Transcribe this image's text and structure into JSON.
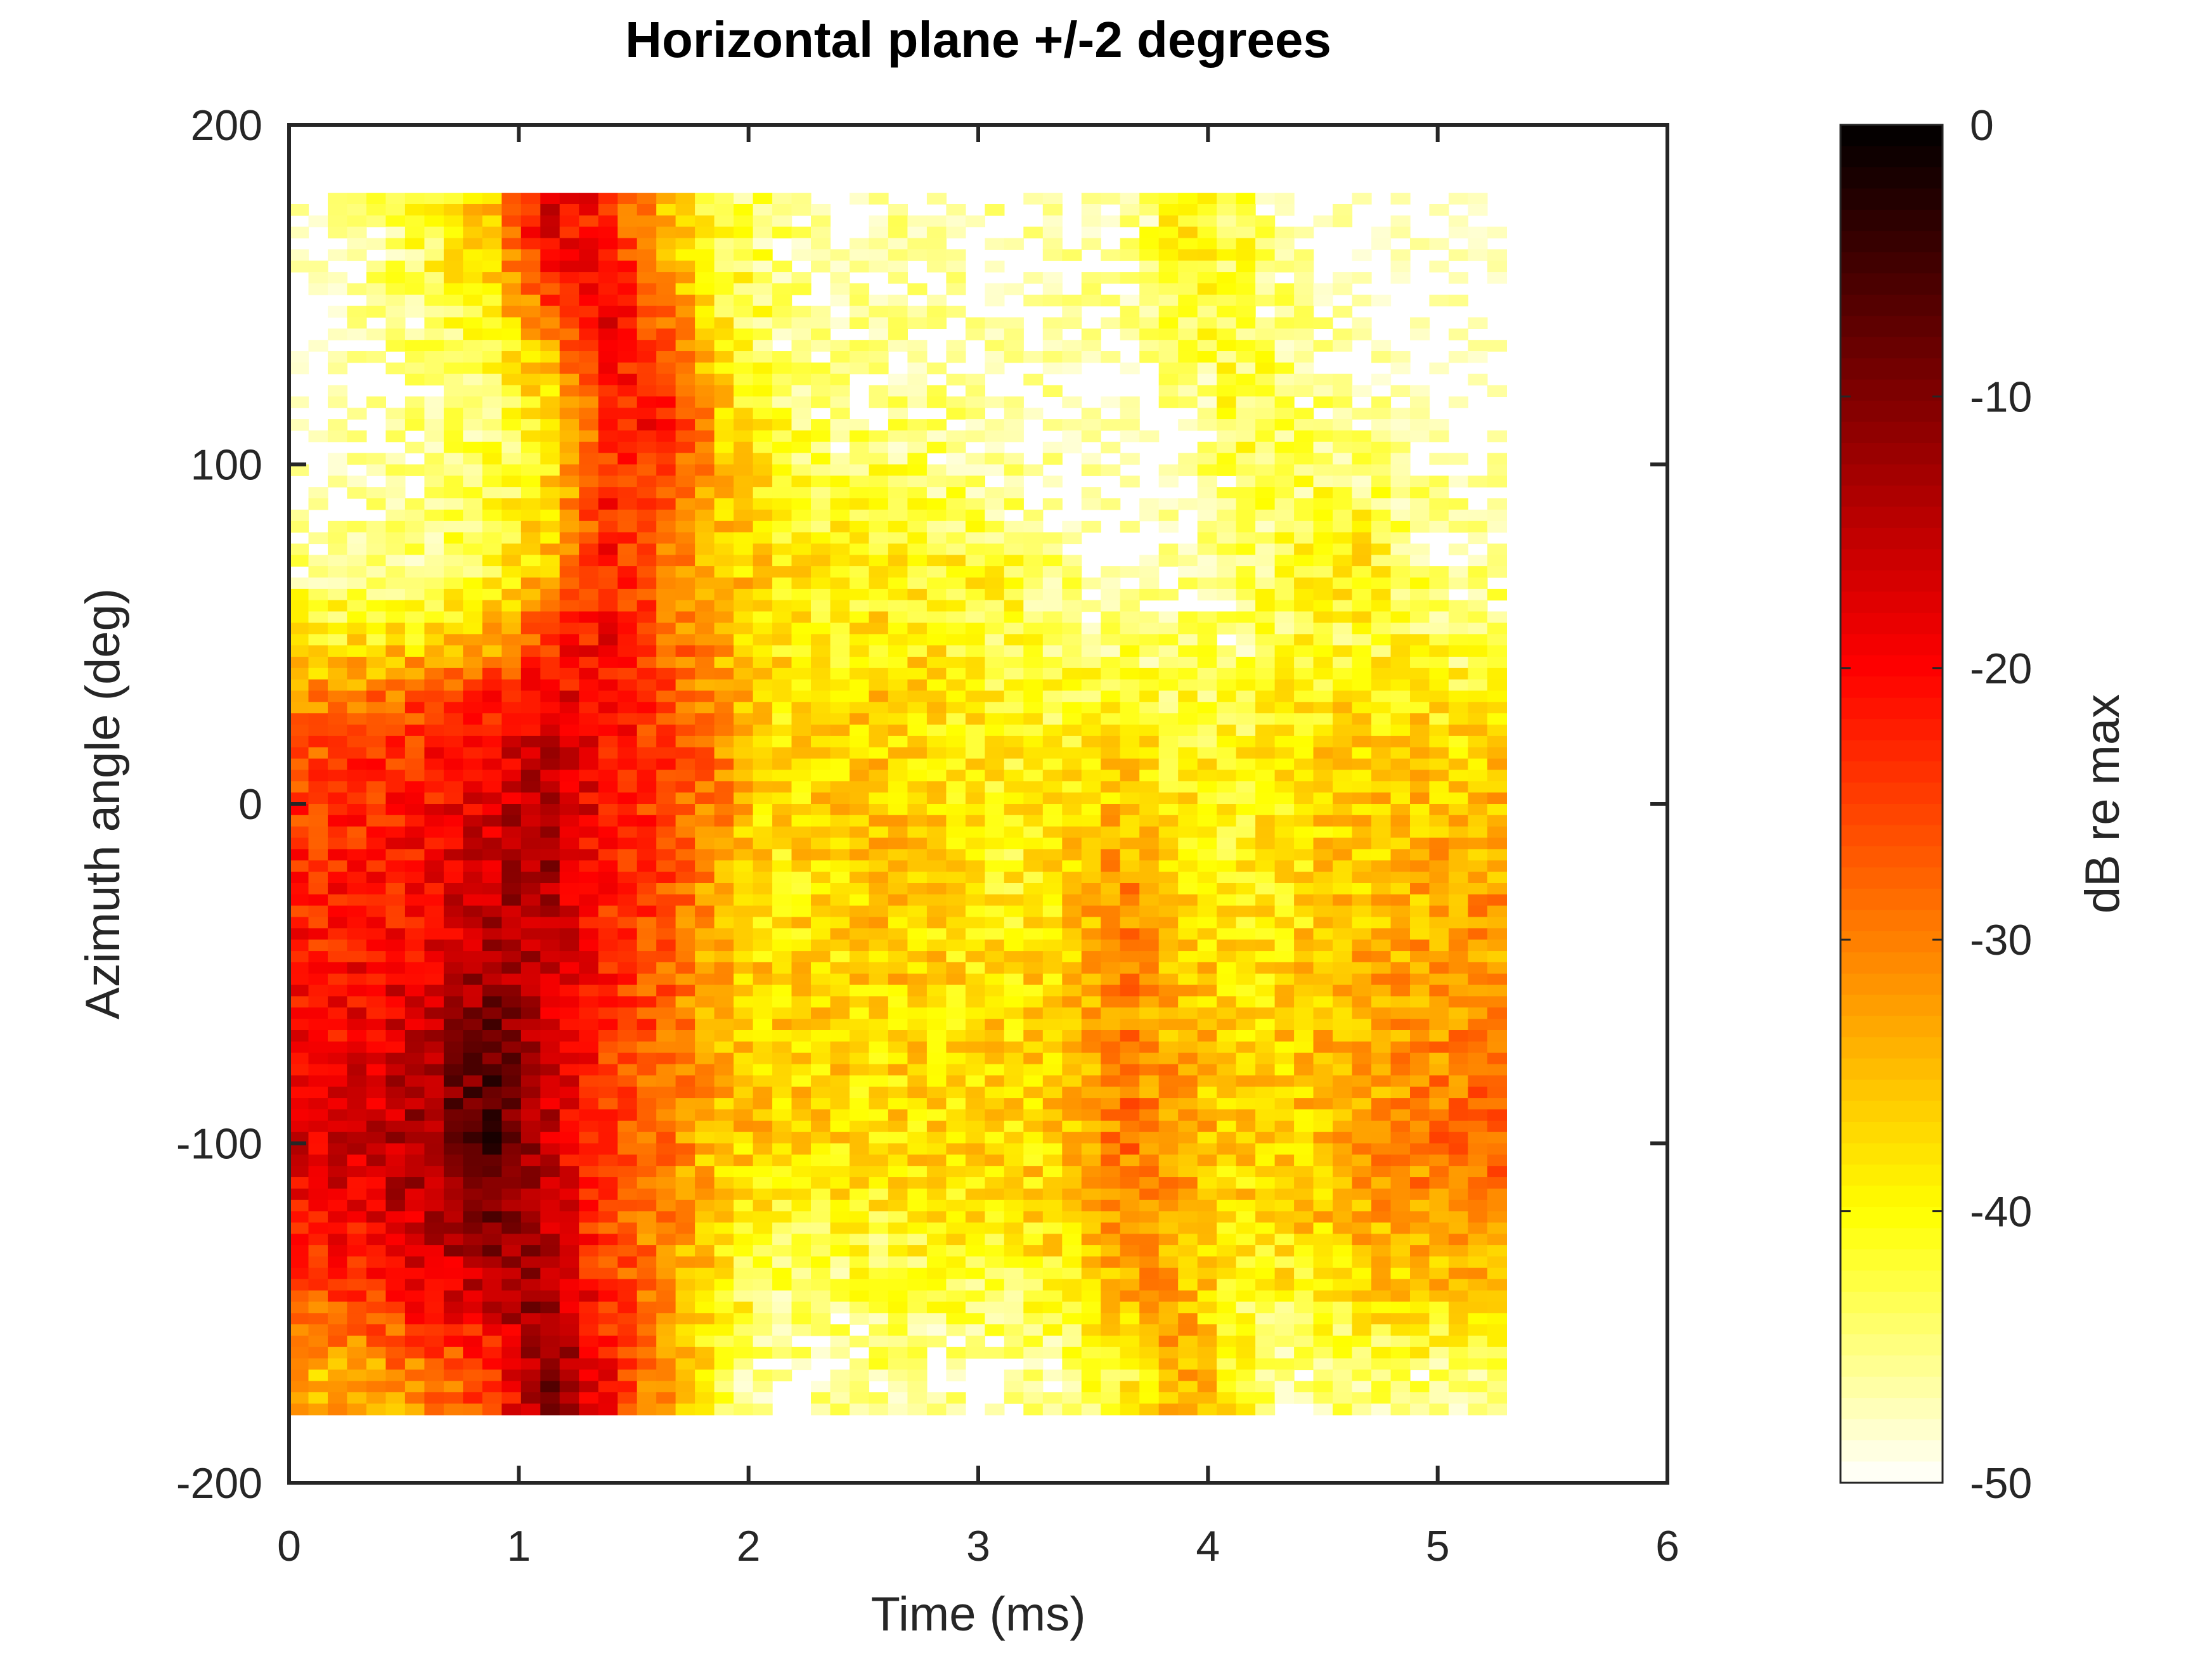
{
  "chart_data": {
    "type": "heatmap",
    "title": "Horizontal plane +/-2 degrees",
    "xlabel": "Time (ms)",
    "ylabel": "Azimuth angle (deg)",
    "colorbar_label": "dB re max",
    "xlim": [
      0,
      6
    ],
    "ylim": [
      -200,
      200
    ],
    "clim": [
      -50,
      0
    ],
    "colormap": "hot (reversed: 0 dB black, -50 dB white)",
    "grid": false,
    "xticks": [
      "0",
      "1",
      "2",
      "3",
      "4",
      "5",
      "6"
    ],
    "yticks": [
      "200",
      "100",
      "0",
      "-100",
      "-200"
    ],
    "cticks": [
      "0",
      "-10",
      "-20",
      "-30",
      "-40",
      "-50"
    ],
    "data_extent": {
      "time_ms": [
        0,
        5.3
      ],
      "angle_deg": [
        -180,
        180
      ]
    },
    "x": [
      0.125,
      0.375,
      0.625,
      0.875,
      1.125,
      1.375,
      1.625,
      1.875,
      2.125,
      2.375,
      2.625,
      2.875,
      3.125,
      3.375,
      3.625,
      3.875,
      4.125,
      4.375,
      4.625,
      4.875,
      5.125
    ],
    "y": [
      170,
      150,
      130,
      110,
      90,
      70,
      50,
      30,
      10,
      -10,
      -30,
      -50,
      -70,
      -90,
      -110,
      -130,
      -150,
      -170
    ],
    "z": [
      [
        -48,
        -45,
        -42,
        -35,
        -18,
        -22,
        -35,
        -42,
        -45,
        -48,
        -47,
        -48,
        -48,
        -48,
        -48,
        -40,
        -42,
        -48,
        -50,
        -50,
        -50
      ],
      [
        -50,
        -47,
        -42,
        -38,
        -25,
        -18,
        -30,
        -40,
        -45,
        -48,
        -47,
        -48,
        -48,
        -48,
        -48,
        -40,
        -42,
        -47,
        -50,
        -50,
        -50
      ],
      [
        -50,
        -48,
        -45,
        -42,
        -35,
        -20,
        -25,
        -38,
        -45,
        -47,
        -48,
        -48,
        -48,
        -48,
        -50,
        -45,
        -42,
        -45,
        -48,
        -50,
        -50
      ],
      [
        -50,
        -48,
        -46,
        -44,
        -40,
        -25,
        -20,
        -35,
        -42,
        -45,
        -45,
        -46,
        -48,
        -48,
        -50,
        -48,
        -42,
        -44,
        -47,
        -48,
        -50
      ],
      [
        -48,
        -47,
        -45,
        -43,
        -38,
        -22,
        -25,
        -35,
        -40,
        -42,
        -42,
        -44,
        -46,
        -48,
        -50,
        -48,
        -45,
        -44,
        -42,
        -45,
        -48
      ],
      [
        -45,
        -45,
        -43,
        -42,
        -35,
        -22,
        -28,
        -35,
        -38,
        -40,
        -40,
        -40,
        -42,
        -46,
        -48,
        -48,
        -45,
        -42,
        -36,
        -44,
        -47
      ],
      [
        -40,
        -40,
        -38,
        -35,
        -25,
        -20,
        -28,
        -33,
        -38,
        -40,
        -38,
        -40,
        -42,
        -44,
        -45,
        -45,
        -45,
        -42,
        -42,
        -42,
        -44
      ],
      [
        -30,
        -28,
        -25,
        -22,
        -18,
        -20,
        -25,
        -32,
        -38,
        -38,
        -36,
        -38,
        -40,
        -42,
        -40,
        -42,
        -42,
        -40,
        -38,
        -38,
        -40
      ],
      [
        -25,
        -24,
        -22,
        -18,
        -14,
        -20,
        -25,
        -30,
        -38,
        -37,
        -36,
        -38,
        -40,
        -40,
        -36,
        -40,
        -40,
        -38,
        -36,
        -35,
        -36
      ],
      [
        -24,
        -22,
        -20,
        -16,
        -12,
        -22,
        -25,
        -32,
        -38,
        -36,
        -34,
        -38,
        -40,
        -38,
        -33,
        -38,
        -40,
        -38,
        -36,
        -35,
        -34
      ],
      [
        -22,
        -22,
        -20,
        -14,
        -14,
        -22,
        -26,
        -34,
        -38,
        -38,
        -35,
        -38,
        -40,
        -38,
        -30,
        -36,
        -40,
        -38,
        -35,
        -34,
        -32
      ],
      [
        -22,
        -20,
        -18,
        -12,
        -15,
        -22,
        -27,
        -34,
        -37,
        -37,
        -36,
        -37,
        -38,
        -36,
        -30,
        -35,
        -38,
        -37,
        -34,
        -33,
        -32
      ],
      [
        -20,
        -18,
        -15,
        -8,
        -16,
        -24,
        -28,
        -34,
        -36,
        -37,
        -37,
        -37,
        -37,
        -36,
        -30,
        -34,
        -37,
        -36,
        -34,
        -32,
        -30
      ],
      [
        -18,
        -16,
        -12,
        -4,
        -15,
        -24,
        -28,
        -34,
        -36,
        -37,
        -37,
        -37,
        -37,
        -36,
        -29,
        -33,
        -37,
        -36,
        -33,
        -31,
        -28
      ],
      [
        -18,
        -16,
        -13,
        -6,
        -16,
        -25,
        -30,
        -36,
        -38,
        -38,
        -38,
        -38,
        -38,
        -36,
        -29,
        -33,
        -37,
        -36,
        -33,
        -31,
        -28
      ],
      [
        -22,
        -20,
        -16,
        -10,
        -14,
        -26,
        -30,
        -38,
        -42,
        -42,
        -42,
        -40,
        -40,
        -38,
        -31,
        -34,
        -38,
        -38,
        -35,
        -33,
        -32
      ],
      [
        -28,
        -26,
        -22,
        -18,
        -10,
        -24,
        -30,
        -40,
        -45,
        -45,
        -44,
        -44,
        -44,
        -42,
        -35,
        -33,
        -42,
        -42,
        -40,
        -38,
        -38
      ],
      [
        -35,
        -33,
        -30,
        -25,
        -10,
        -20,
        -32,
        -42,
        -47,
        -47,
        -45,
        -47,
        -48,
        -46,
        -42,
        -32,
        -40,
        -46,
        -45,
        -45,
        -46
      ]
    ]
  }
}
